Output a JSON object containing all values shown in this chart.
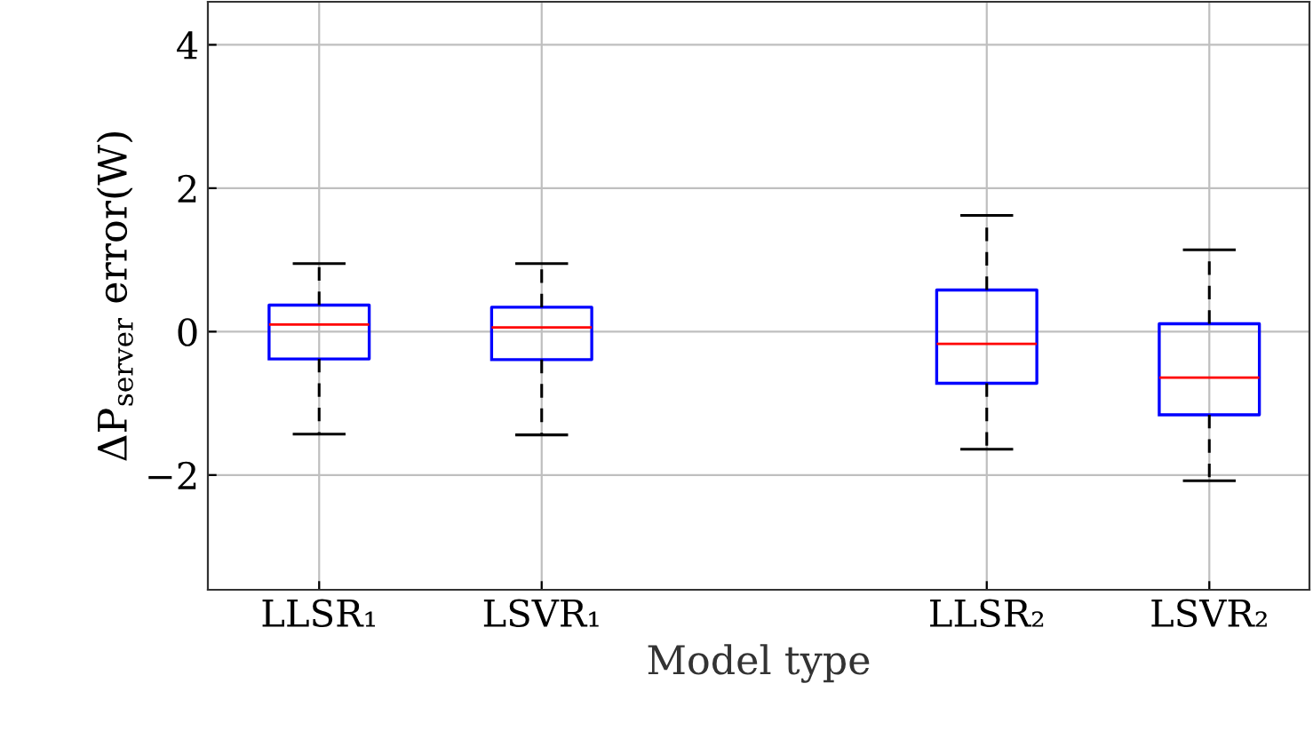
{
  "chart_data": {
    "type": "box",
    "xlabel": "Model type",
    "ylabel": "ΔP$_{server}$ error(W)",
    "categories": [
      "LLSR₁",
      "LSVR₁",
      null,
      "LLSR₂",
      "LSVR₂"
    ],
    "boxes": [
      {
        "low": -1.43,
        "q1": -0.38,
        "median": 0.1,
        "q3": 0.37,
        "high": 0.95
      },
      {
        "low": -1.44,
        "q1": -0.39,
        "median": 0.06,
        "q3": 0.34,
        "high": 0.95
      },
      null,
      {
        "low": -1.64,
        "q1": -0.72,
        "median": -0.17,
        "q3": 0.58,
        "high": 1.62
      },
      {
        "low": -2.08,
        "q1": -1.16,
        "median": -0.64,
        "q3": 0.11,
        "high": 1.14
      }
    ],
    "color": "#0000ff",
    "ylim": [
      -3.6,
      4.6
    ],
    "yticks": [
      {
        "value": -2,
        "label": "−2"
      },
      0,
      2,
      4
    ],
    "grid": true
  }
}
